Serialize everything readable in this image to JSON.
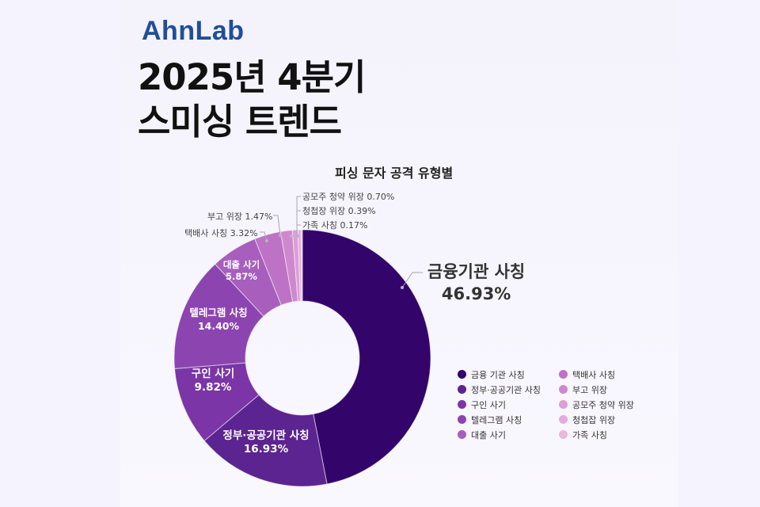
{
  "header": {
    "logo": "AhnLab",
    "title_line1": "2025년 4분기",
    "title_line2": "스미싱 트렌드"
  },
  "chart_data": {
    "type": "pie",
    "subtype": "donut",
    "title": "피싱 문자 공격 유형별",
    "unit": "%",
    "categories": [
      "금융기관 사칭",
      "정부·공공기관 사칭",
      "구인 사기",
      "텔레그램 사칭",
      "대출 사기",
      "택배사 사칭",
      "부고 위장",
      "공모주 청약 위장",
      "청첩장 위장",
      "가족 사칭"
    ],
    "values": [
      46.93,
      16.93,
      9.82,
      14.4,
      5.87,
      3.32,
      1.47,
      0.7,
      0.39,
      0.17
    ],
    "colors": [
      "#33046a",
      "#5c2490",
      "#7b35a6",
      "#8c45b0",
      "#a75ebd",
      "#bd72c5",
      "#cf88cd",
      "#dc9ed6",
      "#e4acdc",
      "#eab5de"
    ],
    "start_angle": "top (12 o'clock)",
    "direction": "clockwise",
    "legend_position": "bottom-right",
    "labels": {
      "inside": [
        {
          "name": "정부·공공기관 사칭",
          "value": "16.93%"
        },
        {
          "name": "구인 사기",
          "value": "9.82%"
        },
        {
          "name": "텔레그램 사칭",
          "value": "14.40%"
        },
        {
          "name": "대출 사기",
          "value": "5.87%"
        }
      ],
      "callout_main": {
        "name": "금융기관 사칭",
        "value": "46.93%"
      },
      "callouts_small": [
        {
          "text": "택배사 사칭 3.32%"
        },
        {
          "text": "부고 위장 1.47%"
        },
        {
          "text": "공모주 청약 위장 0.70%"
        },
        {
          "text": "청첩장 위장 0.39%"
        },
        {
          "text": "가족 사칭 0.17%"
        }
      ]
    }
  },
  "legend": {
    "items": [
      {
        "label": "금융 기관 사칭",
        "color": "#33046a"
      },
      {
        "label": "택배사 사칭",
        "color": "#bd72c5"
      },
      {
        "label": "정부·공공기관 사칭",
        "color": "#5c2490"
      },
      {
        "label": "부고 위장",
        "color": "#cf88cd"
      },
      {
        "label": "구인 사기",
        "color": "#7b35a6"
      },
      {
        "label": "공모주 청약 위장",
        "color": "#dc9ed6"
      },
      {
        "label": "텔레그램 사칭",
        "color": "#8c45b0"
      },
      {
        "label": "청첩잡 위장",
        "color": "#e4acdc"
      },
      {
        "label": "대출 사기",
        "color": "#a75ebd"
      },
      {
        "label": "가족 사칭",
        "color": "#eab5de"
      }
    ]
  }
}
